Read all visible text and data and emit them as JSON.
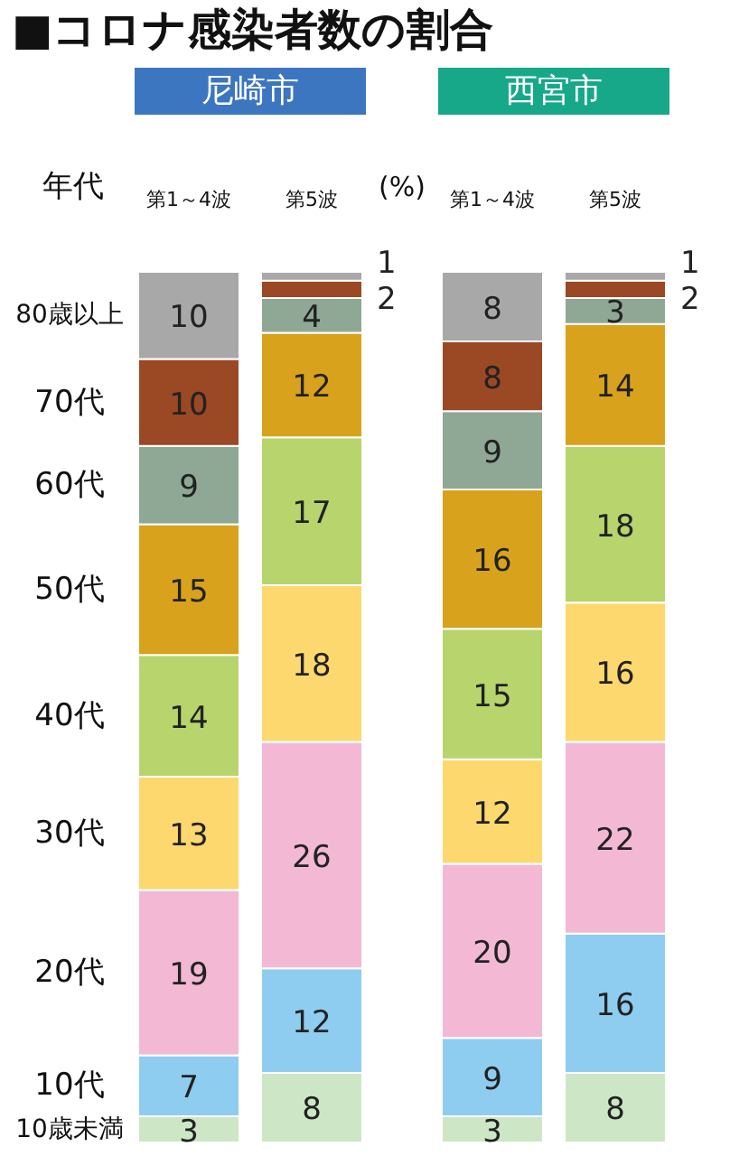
{
  "chart_data": {
    "type": "bar",
    "stacked": true,
    "title": "■コロナ感染者数の割合",
    "legend_title": "年代",
    "legend": "left",
    "data_labels": true,
    "categories": [
      "第1～4波",
      "第5波",
      "第1～4波",
      "第5波"
    ],
    "annotations": [
      "尼崎市",
      "西宮市",
      "(%)"
    ],
    "series": [
      {
        "name": "10歳未満",
        "color": "#cde7c6",
        "values": [
          3,
          8,
          3,
          8
        ]
      },
      {
        "name": "10代",
        "color": "#8ecdf0",
        "values": [
          7,
          12,
          9,
          16
        ]
      },
      {
        "name": "20代",
        "color": "#f2b8d4",
        "values": [
          19,
          26,
          20,
          22
        ]
      },
      {
        "name": "30代",
        "color": "#fdd86e",
        "values": [
          13,
          18,
          12,
          16
        ]
      },
      {
        "name": "40代",
        "color": "#b8d46c",
        "values": [
          14,
          17,
          15,
          18
        ]
      },
      {
        "name": "50代",
        "color": "#d8a21c",
        "values": [
          15,
          12,
          16,
          14
        ]
      },
      {
        "name": "60代",
        "color": "#8fa896",
        "values": [
          9,
          4,
          9,
          3
        ]
      },
      {
        "name": "70代",
        "color": "#9b4824",
        "values": [
          10,
          2,
          8,
          2
        ]
      },
      {
        "name": "80歳以上",
        "color": "#a8a8a8",
        "values": [
          10,
          1,
          8,
          1
        ]
      }
    ]
  }
}
